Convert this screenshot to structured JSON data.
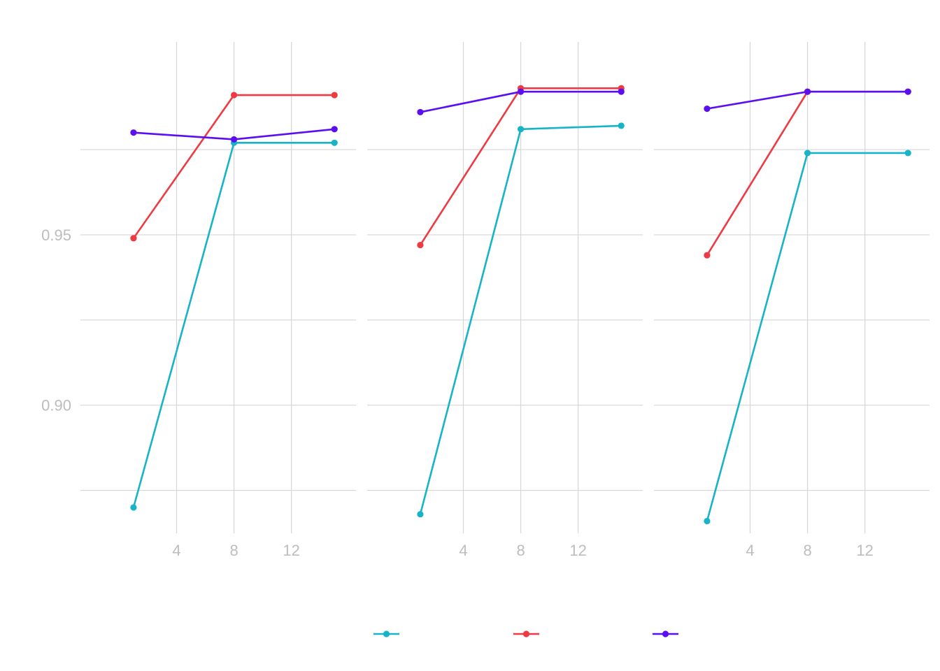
{
  "chart_data": [
    {
      "type": "line",
      "panel": 1,
      "x": [
        1,
        8,
        15
      ],
      "xlim": [
        -2.7,
        16.5
      ],
      "ylim": [
        0.8624,
        1.0066
      ],
      "x_ticks": [
        4,
        8,
        12
      ],
      "y_ticks": [
        0.9,
        0.95
      ],
      "y_tick_labels": [
        "0.90",
        "0.95"
      ],
      "grid": true,
      "series": [
        {
          "color": "#17b3c7",
          "values": [
            0.87,
            0.977,
            0.977
          ]
        },
        {
          "color": "#ee3a43",
          "values": [
            0.949,
            0.991,
            0.991
          ]
        },
        {
          "color": "#5b0ff0",
          "values": [
            0.98,
            0.978,
            0.981
          ]
        }
      ]
    },
    {
      "type": "line",
      "panel": 2,
      "x": [
        1,
        8,
        15
      ],
      "xlim": [
        -2.7,
        16.5
      ],
      "ylim": [
        0.8624,
        1.0066
      ],
      "x_ticks": [
        4,
        8,
        12
      ],
      "grid": true,
      "series": [
        {
          "color": "#17b3c7",
          "values": [
            0.868,
            0.981,
            0.982
          ]
        },
        {
          "color": "#ee3a43",
          "values": [
            0.947,
            0.993,
            0.993
          ]
        },
        {
          "color": "#5b0ff0",
          "values": [
            0.986,
            0.992,
            0.992
          ]
        }
      ]
    },
    {
      "type": "line",
      "panel": 3,
      "x": [
        1,
        8,
        15
      ],
      "xlim": [
        -2.7,
        16.5
      ],
      "ylim": [
        0.8624,
        1.0066
      ],
      "x_ticks": [
        4,
        8,
        12
      ],
      "grid": true,
      "series": [
        {
          "color": "#17b3c7",
          "values": [
            0.866,
            0.974,
            0.974
          ]
        },
        {
          "color": "#ee3a43",
          "values": [
            0.944,
            0.992,
            0.992
          ]
        },
        {
          "color": "#5b0ff0",
          "values": [
            0.987,
            0.992,
            0.992
          ]
        }
      ]
    }
  ],
  "legend": {
    "placement": "bottom",
    "entries": [
      {
        "color": "#17b3c7"
      },
      {
        "color": "#ee3a43"
      },
      {
        "color": "#5b0ff0"
      }
    ]
  }
}
